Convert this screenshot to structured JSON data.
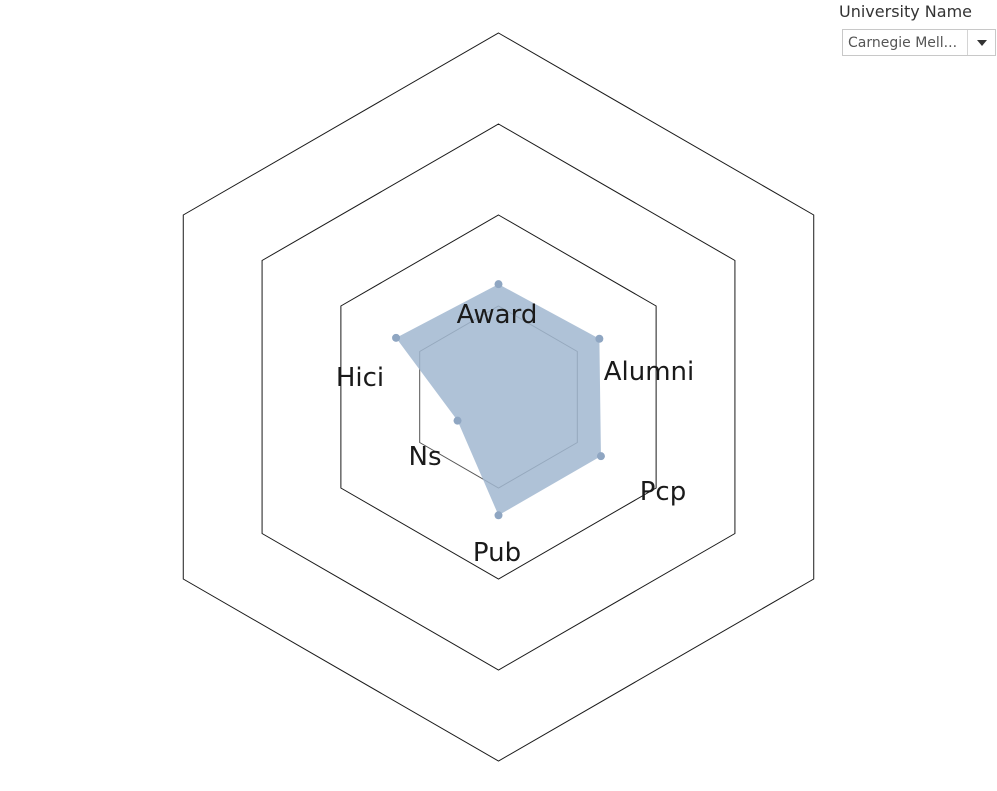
{
  "filter": {
    "title": "University Name",
    "selected_value": "Carnegie Mell...",
    "arrow_icon": "caret-down-icon"
  },
  "chart_data": {
    "type": "radar",
    "axes": [
      "Award",
      "Alumni",
      "Pcp",
      "Pub",
      "Ns",
      "Hici"
    ],
    "series": [
      {
        "values": [
          0.31,
          0.32,
          0.325,
          0.325,
          0.13,
          0.325
        ],
        "color": "#a1b7d0",
        "point_color": "#8fa6c2"
      }
    ],
    "rings": [
      0.25,
      0.5,
      0.75,
      1.0
    ],
    "range": [
      0,
      1
    ],
    "grid": true,
    "legend": "none"
  }
}
